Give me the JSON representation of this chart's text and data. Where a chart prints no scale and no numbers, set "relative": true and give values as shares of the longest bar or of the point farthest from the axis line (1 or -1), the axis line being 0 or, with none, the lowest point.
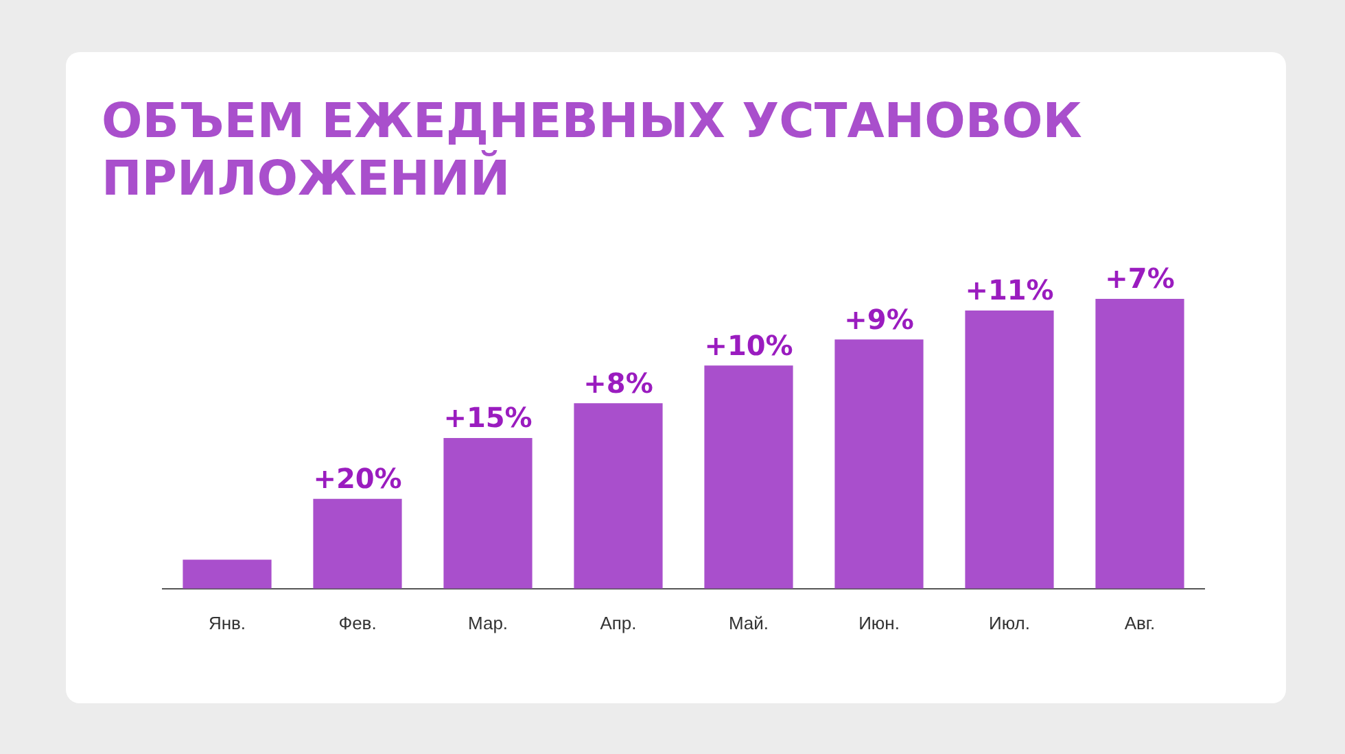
{
  "chart_data": {
    "type": "bar",
    "title": "ОБЪЕМ ЕЖЕДНЕВНЫХ УСТАНОВОК ПРИЛОЖЕНИЙ",
    "categories": [
      "Янв.",
      "Фев.",
      "Мар.",
      "Апр.",
      "Май.",
      "Июн.",
      "Июл.",
      "Авг."
    ],
    "values": [
      0.1,
      0.31,
      0.52,
      0.64,
      0.77,
      0.86,
      0.96,
      1
    ],
    "annotations": [
      {
        "text": "+20%",
        "x": "Фев.",
        "y": 0.31
      },
      {
        "text": "+15%",
        "x": "Мар.",
        "y": 0.52
      },
      {
        "text": "+8%",
        "x": "Апр.",
        "y": 0.64
      },
      {
        "text": "+10%",
        "x": "Май.",
        "y": 0.77
      },
      {
        "text": "+9%",
        "x": "Июн.",
        "y": 0.86
      },
      {
        "text": "+11%",
        "x": "Июл.",
        "y": 0.96
      },
      {
        "text": "+7%",
        "x": "Авг.",
        "y": 1
      }
    ],
    "color": "#a94fcc",
    "relative": true
  }
}
